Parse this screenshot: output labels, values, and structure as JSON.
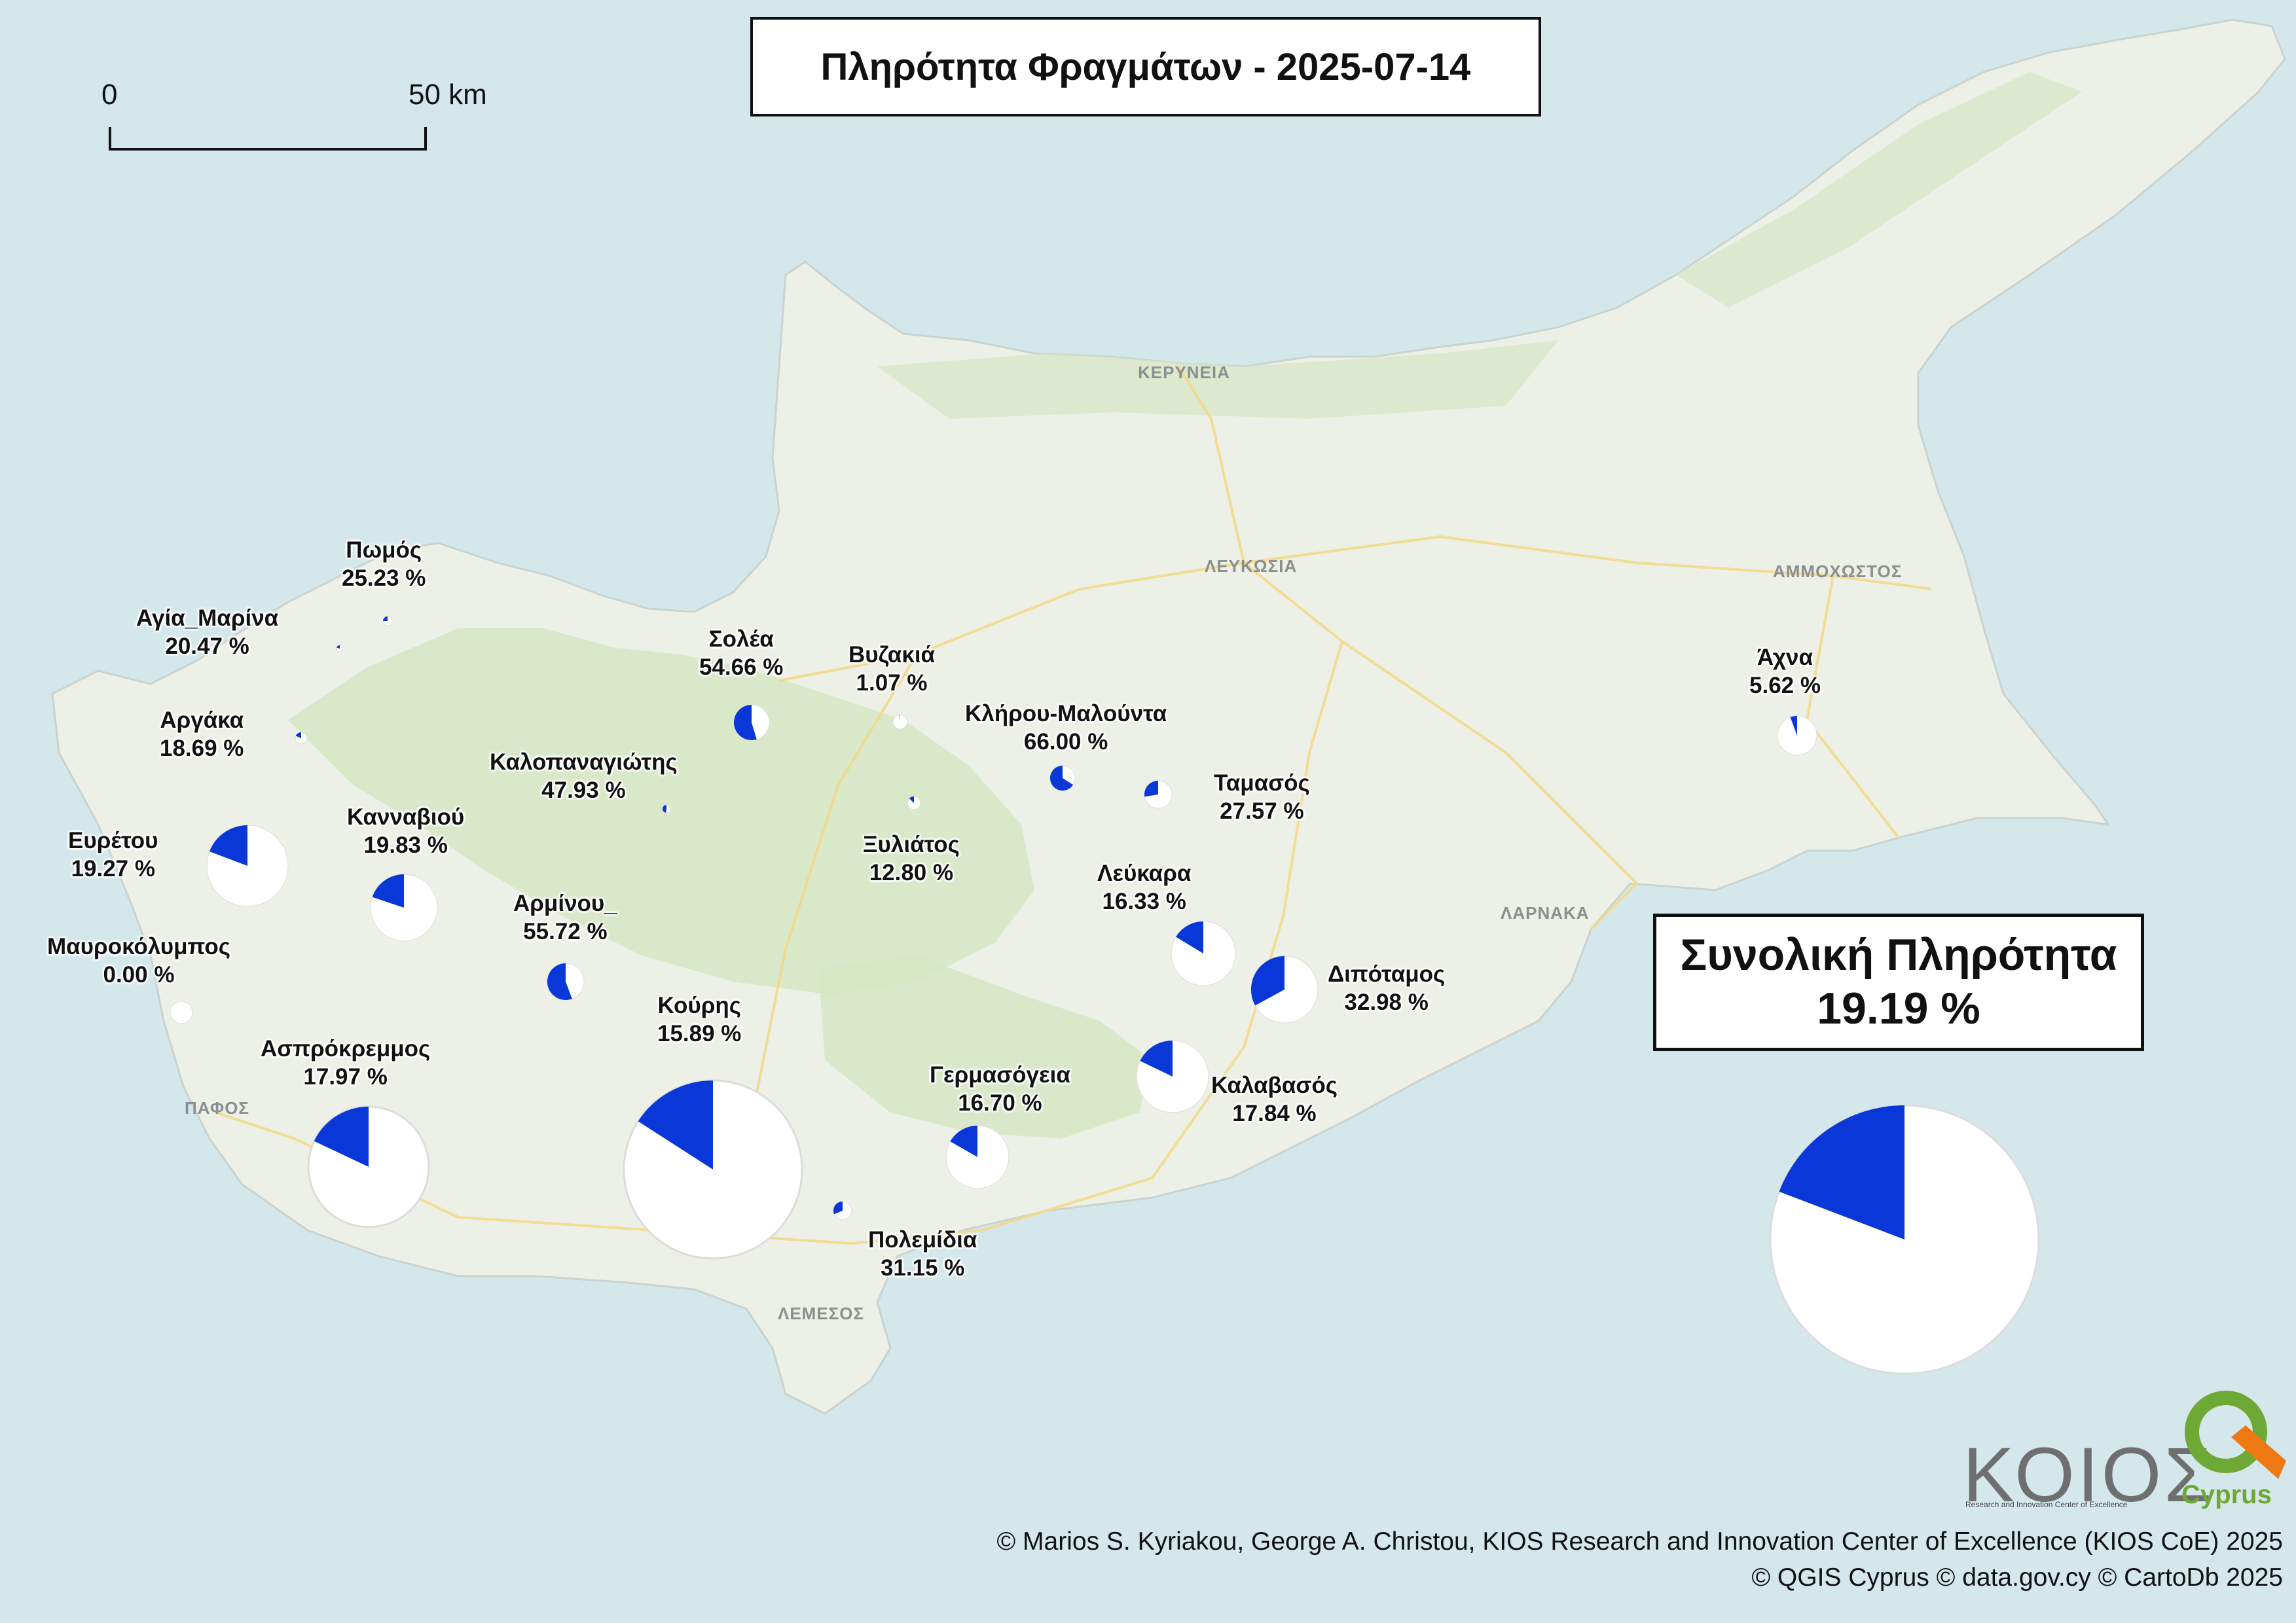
{
  "title": "Πληρότητα Φραγμάτων - 2025-07-14",
  "total": {
    "label": "Συνολική Πληρότητα",
    "value": "19.19 %",
    "fraction": 0.1919
  },
  "scale_bar": {
    "start_label": "0",
    "end_label": "50 km"
  },
  "regions": {
    "kyrenia": "ΚΕΡΥΝΕΙΑ",
    "nicosia": "ΛΕΥΚΩΣΙΑ",
    "famagusta": "ΑΜΜΟΧΩΣΤΟΣ",
    "larnaca": "ΛΑΡΝΑΚΑ",
    "paphos": "ΠΑΦΟΣ",
    "limassol": "ΛΕΜΕΣΟΣ"
  },
  "colors": {
    "sea": "#d4e7ea",
    "land": "#edf0e6",
    "forest": "#d5e6c3",
    "roads": "#f3d98a",
    "fill": "#0a37d8",
    "empty": "#ffffff"
  },
  "dams": [
    {
      "name": "Πωμός",
      "value": "25.23 %",
      "fraction": 0.2523
    },
    {
      "name": "Αγία_Μαρίνα",
      "value": "20.47 %",
      "fraction": 0.2047
    },
    {
      "name": "Αργάκα",
      "value": "18.69 %",
      "fraction": 0.1869
    },
    {
      "name": "Σολέα",
      "value": "54.66 %",
      "fraction": 0.5466
    },
    {
      "name": "Βυζακιά",
      "value": "1.07 %",
      "fraction": 0.0107
    },
    {
      "name": "Κλήρου-Μαλούντα",
      "value": "66.00 %",
      "fraction": 0.66
    },
    {
      "name": "Καλοπαναγιώτης",
      "value": "47.93 %",
      "fraction": 0.4793
    },
    {
      "name": "Ξυλιάτος",
      "value": "12.80 %",
      "fraction": 0.128
    },
    {
      "name": "Ταμασός",
      "value": "27.57 %",
      "fraction": 0.2757
    },
    {
      "name": "Άχνα",
      "value": "5.62 %",
      "fraction": 0.0562
    },
    {
      "name": "Ευρέτου",
      "value": "19.27 %",
      "fraction": 0.1927
    },
    {
      "name": "Κανναβιού",
      "value": "19.83 %",
      "fraction": 0.1983
    },
    {
      "name": "Αρμίνου_",
      "value": "55.72 %",
      "fraction": 0.5572
    },
    {
      "name": "Λεύκαρα",
      "value": "16.33 %",
      "fraction": 0.1633
    },
    {
      "name": "Μαυροκόλυμπος",
      "value": "0.00 %",
      "fraction": 0.0
    },
    {
      "name": "Διπόταμος",
      "value": "32.98 %",
      "fraction": 0.3298
    },
    {
      "name": "Κούρης",
      "value": "15.89 %",
      "fraction": 0.1589
    },
    {
      "name": "Ασπρόκρεμμος",
      "value": "17.97 %",
      "fraction": 0.1797
    },
    {
      "name": "Γερμασόγεια",
      "value": "16.70 %",
      "fraction": 0.167
    },
    {
      "name": "Καλαβασός",
      "value": "17.84 %",
      "fraction": 0.1784
    },
    {
      "name": "Πολεμίδια",
      "value": "31.15 %",
      "fraction": 0.3115
    }
  ],
  "logos": {
    "kios": "ΚΟΙΟΣ",
    "kios_sub": "Research and Innovation Center of Excellence",
    "cyprus": "Cyprus"
  },
  "credits": [
    "© Marios S. Kyriakou, George A. Christou, KIOS Research and Innovation Center of Excellence (KIOS CoE) 2025",
    "© QGIS Cyprus © data.gov.cy © CartoDb 2025"
  ]
}
